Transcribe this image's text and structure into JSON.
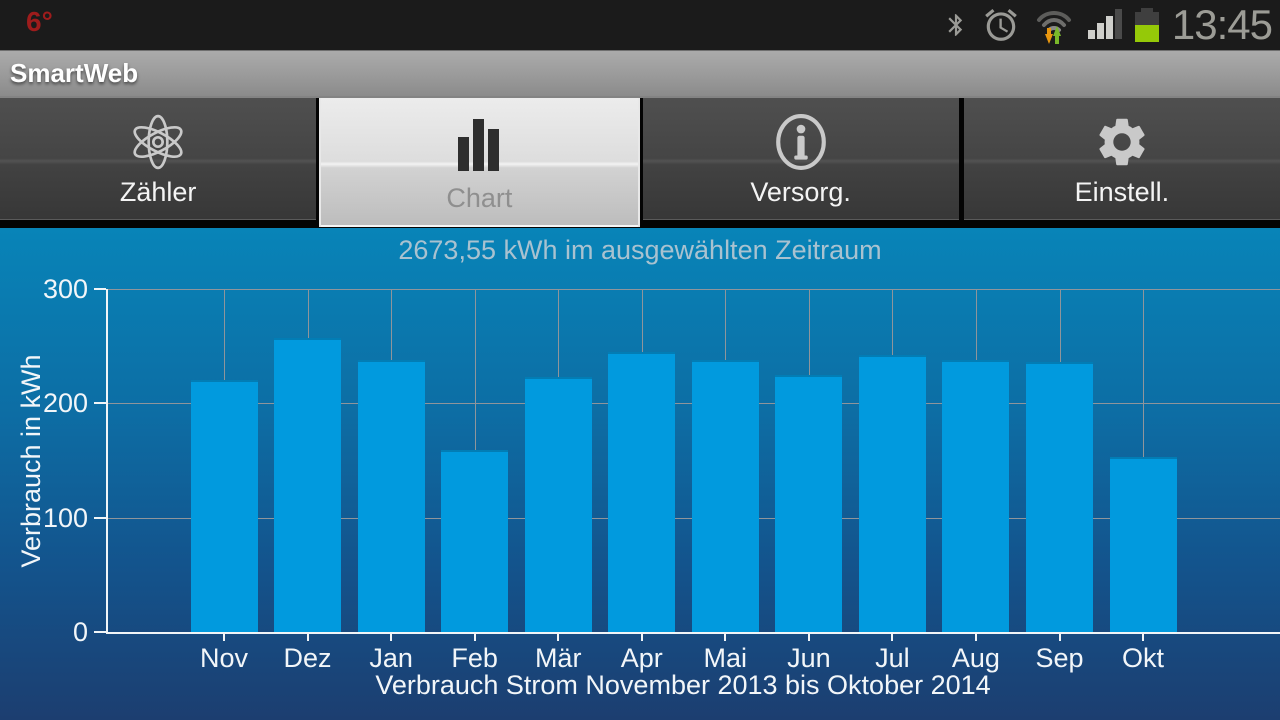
{
  "status_bar": {
    "temperature": "6°",
    "time": "13:45",
    "icons": [
      "bluetooth-icon",
      "alarm-icon",
      "wifi-traffic-icon",
      "signal-strength-icon",
      "battery-icon"
    ]
  },
  "title_bar": {
    "title": "SmartWeb"
  },
  "tab_bar": {
    "tabs": [
      {
        "label": "Zähler",
        "icon": "atom-icon",
        "selected": false
      },
      {
        "label": "Chart",
        "icon": "bar-chart-icon",
        "selected": true
      },
      {
        "label": "Versorg.",
        "icon": "info-icon",
        "selected": false
      },
      {
        "label": "Einstell.",
        "icon": "gear-icon",
        "selected": false
      }
    ]
  },
  "chart_data": {
    "type": "bar",
    "title": "2673,55 kWh im ausgewählten Zeitraum",
    "categories": [
      "Nov",
      "Dez",
      "Jan",
      "Feb",
      "Mär",
      "Apr",
      "Mai",
      "Jun",
      "Jul",
      "Aug",
      "Sep",
      "Okt"
    ],
    "values": [
      220,
      257,
      238,
      159,
      223,
      245,
      238,
      225,
      242,
      238,
      236,
      153
    ],
    "total_label": "2673,55 kWh",
    "xlabel": "Verbrauch Strom November 2013 bis Oktober 2014",
    "ylabel": "Verbrauch in kWh",
    "yticks": [
      0,
      100,
      200,
      300
    ],
    "ylim": [
      0,
      300
    ],
    "grid": true,
    "bar_color": "#019ade",
    "background_gradient": [
      "#0884b8",
      "#1c3e70"
    ],
    "grid_color": "#8f959b",
    "axis_color": "#f0f5f8"
  }
}
